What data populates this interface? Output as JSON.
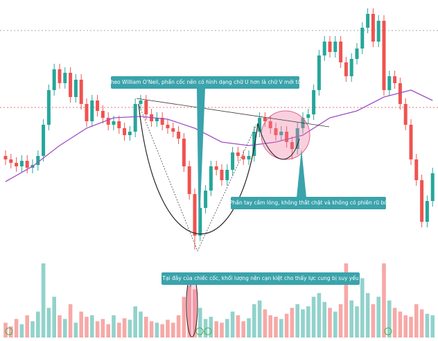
{
  "chart_data": {
    "type": "candlestick",
    "up_color": "#26a69a",
    "down_color": "#ef5350",
    "ma_color": "#9c4fc4",
    "ylim": [
      0,
      360
    ],
    "volume_lim": [
      0,
      100
    ],
    "ohlc": [
      [
        145,
        153,
        132,
        140
      ],
      [
        140,
        148,
        127,
        135
      ],
      [
        135,
        143,
        122,
        130
      ],
      [
        130,
        146,
        122,
        138
      ],
      [
        138,
        146,
        120,
        128
      ],
      [
        128,
        140,
        120,
        132
      ],
      [
        132,
        153,
        124,
        145
      ],
      [
        145,
        198,
        137,
        190
      ],
      [
        190,
        248,
        182,
        240
      ],
      [
        240,
        278,
        232,
        270
      ],
      [
        270,
        278,
        242,
        250
      ],
      [
        250,
        273,
        242,
        265
      ],
      [
        265,
        273,
        222,
        230
      ],
      [
        230,
        263,
        222,
        255
      ],
      [
        255,
        263,
        212,
        220
      ],
      [
        220,
        228,
        187,
        195
      ],
      [
        195,
        233,
        187,
        225
      ],
      [
        225,
        233,
        202,
        210
      ],
      [
        210,
        218,
        192,
        200
      ],
      [
        200,
        208,
        182,
        190
      ],
      [
        190,
        203,
        182,
        195
      ],
      [
        195,
        203,
        177,
        185
      ],
      [
        185,
        193,
        167,
        175
      ],
      [
        175,
        188,
        167,
        180
      ],
      [
        180,
        228,
        172,
        220
      ],
      [
        220,
        233,
        212,
        225
      ],
      [
        225,
        233,
        197,
        205
      ],
      [
        205,
        213,
        187,
        195
      ],
      [
        195,
        208,
        187,
        200
      ],
      [
        200,
        208,
        182,
        190
      ],
      [
        190,
        198,
        177,
        185
      ],
      [
        185,
        193,
        172,
        180
      ],
      [
        180,
        188,
        162,
        170
      ],
      [
        170,
        178,
        122,
        130
      ],
      [
        130,
        138,
        82,
        90
      ],
      [
        90,
        98,
        10,
        30
      ],
      [
        30,
        78,
        22,
        70
      ],
      [
        70,
        103,
        62,
        95
      ],
      [
        95,
        138,
        87,
        130
      ],
      [
        130,
        138,
        117,
        125
      ],
      [
        125,
        133,
        102,
        110
      ],
      [
        110,
        133,
        102,
        125
      ],
      [
        125,
        158,
        117,
        150
      ],
      [
        150,
        158,
        137,
        145
      ],
      [
        145,
        153,
        132,
        140
      ],
      [
        140,
        153,
        132,
        145
      ],
      [
        145,
        188,
        137,
        180
      ],
      [
        180,
        208,
        172,
        200
      ],
      [
        200,
        208,
        187,
        195
      ],
      [
        195,
        203,
        177,
        185
      ],
      [
        185,
        193,
        167,
        175
      ],
      [
        175,
        188,
        167,
        180
      ],
      [
        180,
        188,
        157,
        165
      ],
      [
        165,
        173,
        140,
        155
      ],
      [
        155,
        193,
        147,
        185
      ],
      [
        185,
        208,
        177,
        200
      ],
      [
        200,
        213,
        192,
        205
      ],
      [
        205,
        248,
        197,
        240
      ],
      [
        240,
        298,
        232,
        290
      ],
      [
        290,
        318,
        282,
        310
      ],
      [
        310,
        318,
        287,
        295
      ],
      [
        295,
        318,
        287,
        310
      ],
      [
        310,
        318,
        272,
        280
      ],
      [
        280,
        288,
        252,
        260
      ],
      [
        260,
        293,
        252,
        285
      ],
      [
        285,
        308,
        277,
        300
      ],
      [
        300,
        338,
        292,
        330
      ],
      [
        330,
        358,
        322,
        350
      ],
      [
        350,
        358,
        302,
        310
      ],
      [
        310,
        348,
        302,
        340
      ],
      [
        340,
        348,
        232,
        240
      ],
      [
        240,
        268,
        232,
        260
      ],
      [
        260,
        268,
        242,
        250
      ],
      [
        250,
        258,
        212,
        220
      ],
      [
        220,
        228,
        182,
        190
      ],
      [
        190,
        198,
        132,
        140
      ],
      [
        140,
        148,
        102,
        110
      ],
      [
        110,
        118,
        42,
        50
      ],
      [
        50,
        88,
        42,
        80
      ],
      [
        80,
        128,
        72,
        120
      ]
    ],
    "volume": [
      20,
      15,
      25,
      18,
      30,
      22,
      35,
      100,
      40,
      55,
      30,
      25,
      45,
      20,
      35,
      28,
      30,
      22,
      25,
      18,
      30,
      20,
      26,
      24,
      42,
      35,
      28,
      22,
      20,
      18,
      24,
      20,
      30,
      55,
      70,
      65,
      40,
      25,
      28,
      22,
      20,
      25,
      35,
      30,
      22,
      26,
      45,
      50,
      38,
      30,
      28,
      25,
      32,
      40,
      45,
      38,
      42,
      55,
      60,
      48,
      40,
      35,
      45,
      100,
      50,
      42,
      80,
      60,
      45,
      55,
      100,
      50,
      40,
      35,
      30,
      28,
      45,
      38,
      32,
      30
    ],
    "ma": {
      "x": [
        0,
        5,
        10,
        15,
        20,
        25,
        30,
        35,
        40,
        45,
        50,
        55,
        60,
        65,
        70,
        75,
        79
      ],
      "values": [
        108,
        130,
        160,
        185,
        200,
        202,
        198,
        185,
        165,
        160,
        165,
        175,
        200,
        210,
        230,
        240,
        225
      ]
    },
    "annotations": [
      "Theo William O'Neil, phần cốc nên có hình dạng chữ U hơn là chữ V mới tốt",
      "Phần tay cầm lỏng, không thắt chặt và không có phiên rũ bỏ",
      "Tại đây của chiếc cốc, khối lượng nên cạn kiệt cho thấy  lực cung bị suy yếu"
    ]
  }
}
